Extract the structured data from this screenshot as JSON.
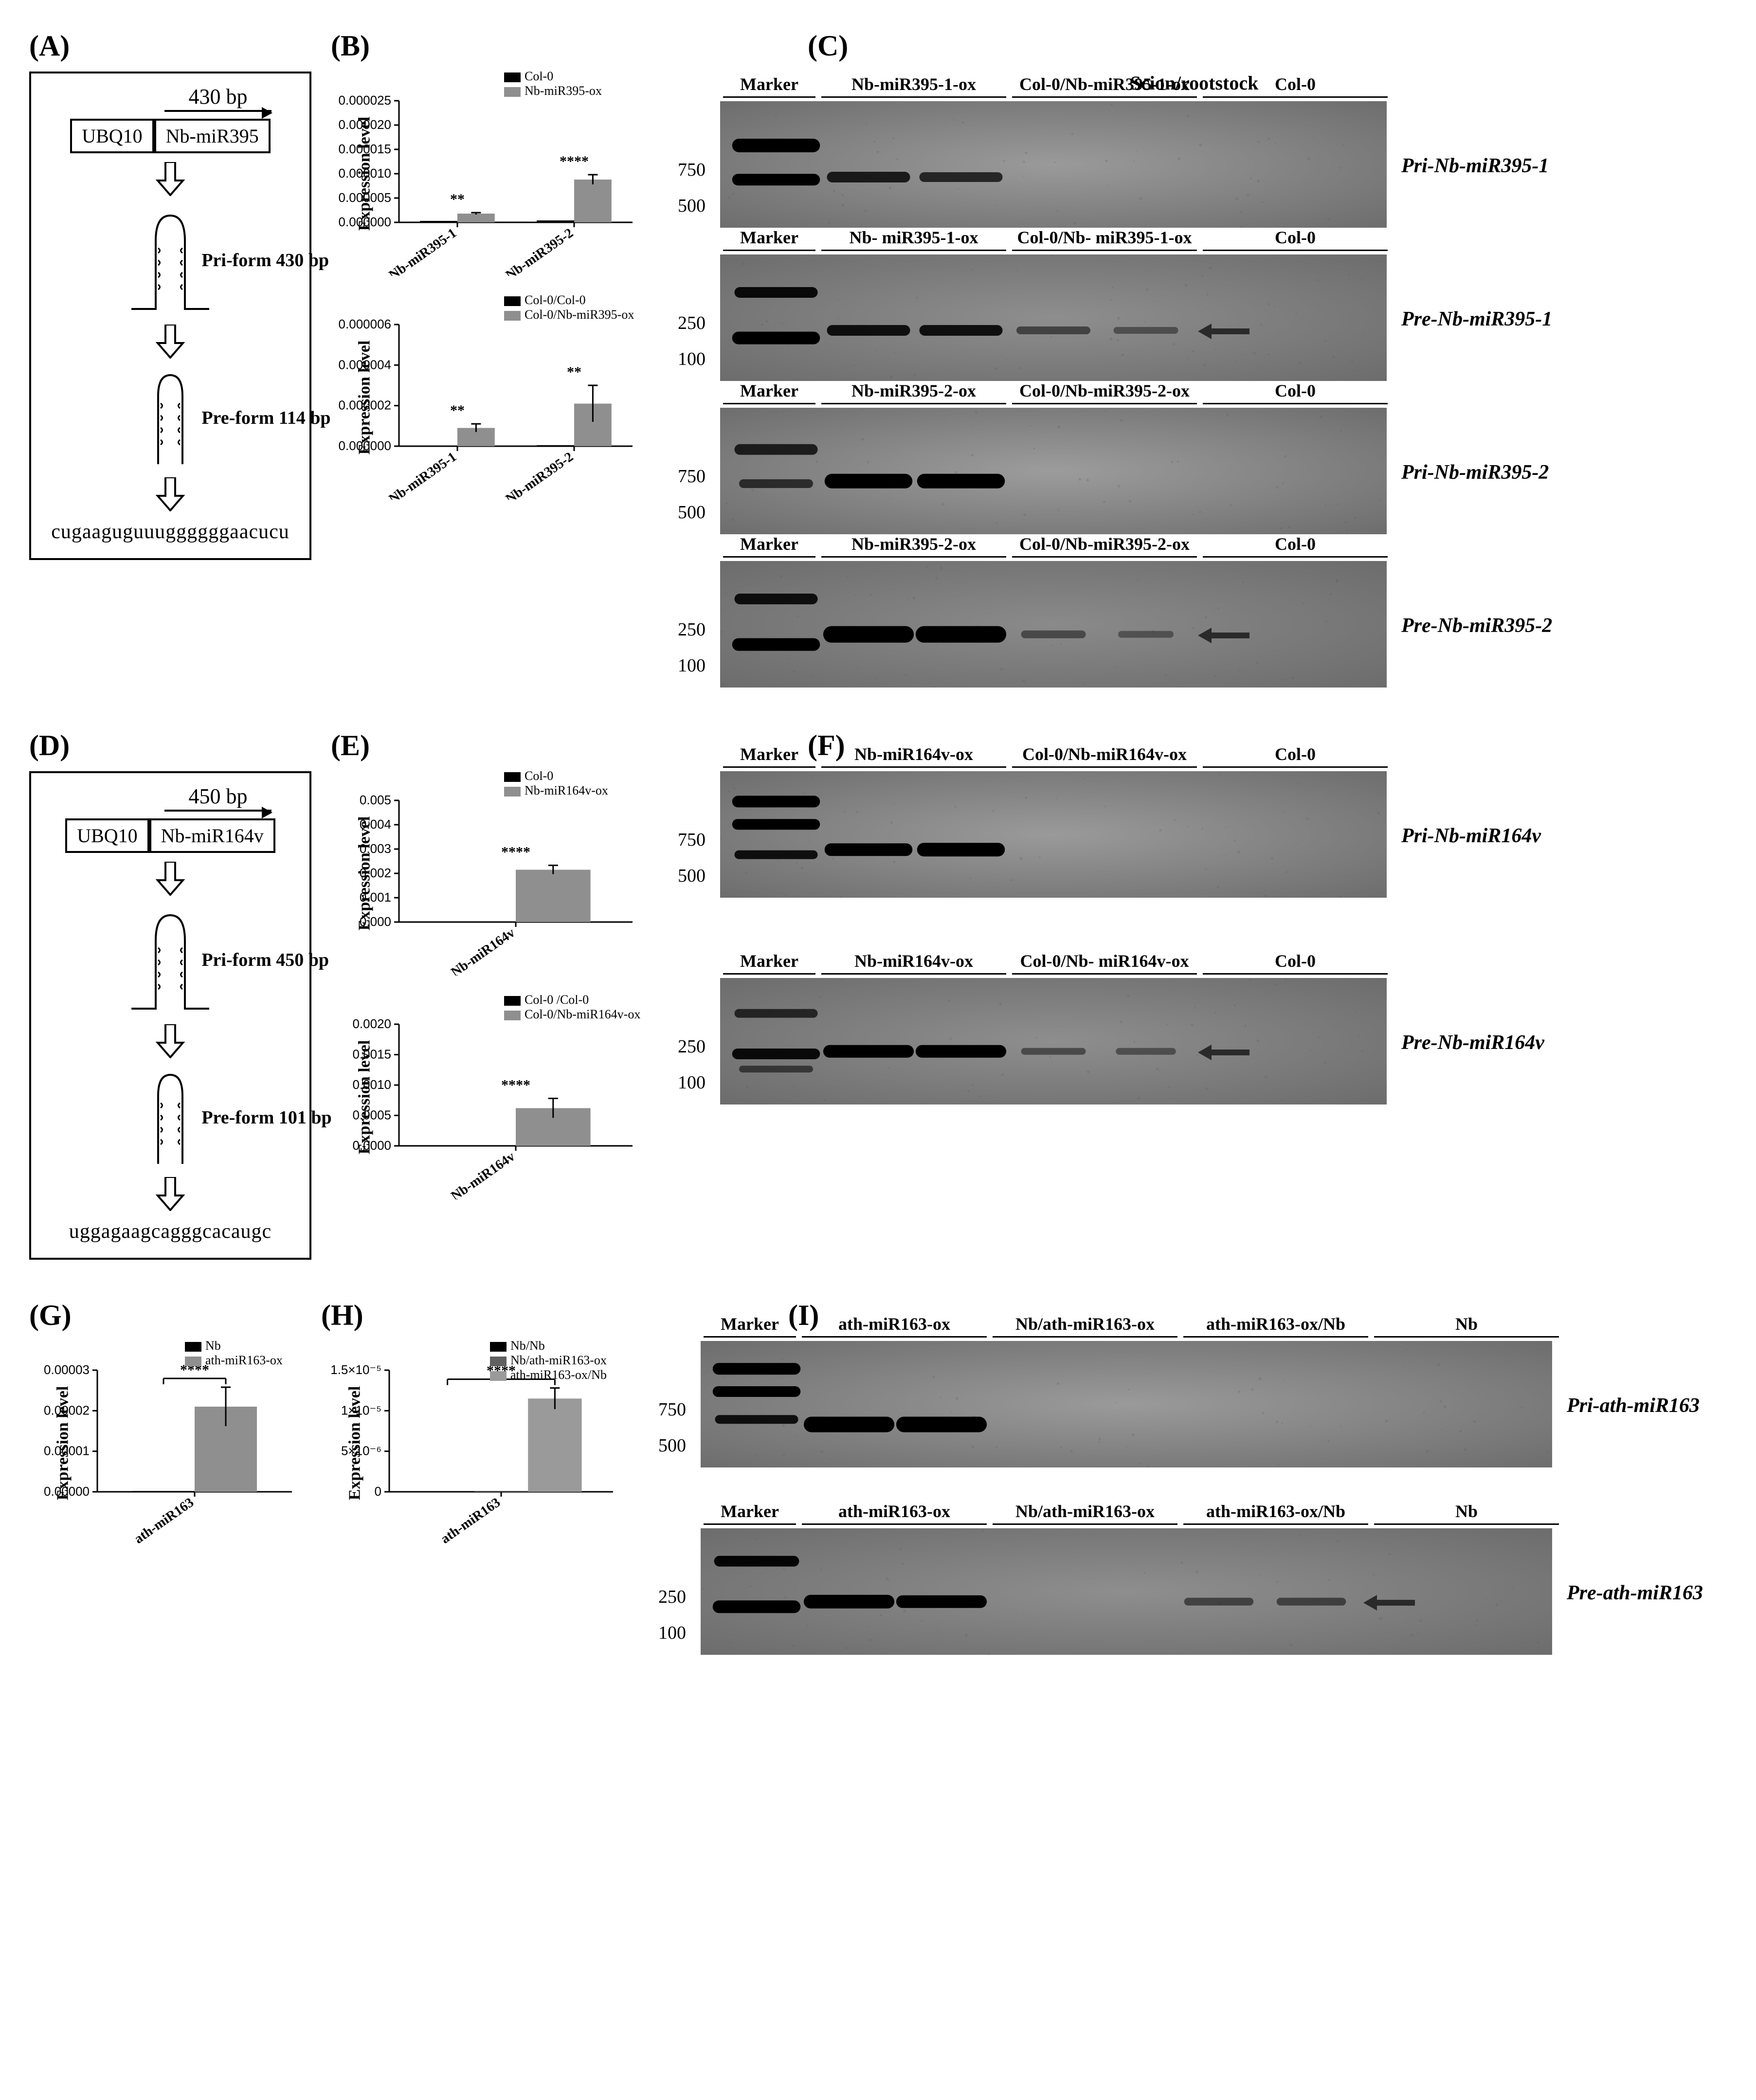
{
  "panels": {
    "A": "(A)",
    "B": "(B)",
    "C": "(C)",
    "D": "(D)",
    "E": "(E)",
    "F": "(F)",
    "G": "(G)",
    "H": "(H)",
    "I": "(I)"
  },
  "scion_rootstock_header": "Scion/rootstock",
  "schematic_A": {
    "bp_label": "430 bp",
    "blocks": [
      "UBQ10",
      "Nb-miR395"
    ],
    "pri_label": "Pri-form 430 bp",
    "pre_label": "Pre-form 114 bp",
    "sequence": "cugaaguguuuggggggaacucu"
  },
  "schematic_D": {
    "bp_label": "450 bp",
    "blocks": [
      "UBQ10",
      "Nb-miR164v"
    ],
    "pri_label": "Pri-form 450 bp",
    "pre_label": "Pre-form 101 bp",
    "sequence": "uggagaagcagggcacaugc"
  },
  "chart_B_top": {
    "type": "bar",
    "ylabel": "Expression level",
    "legend": [
      {
        "label": "Col-0",
        "color": "#000000"
      },
      {
        "label": "Nb-miR395-ox",
        "color": "#8f8f8f"
      }
    ],
    "categories": [
      "Nb-miR395-1",
      "Nb-miR395-2"
    ],
    "series": [
      {
        "color": "#000000",
        "values": [
          3e-07,
          4e-07
        ]
      },
      {
        "color": "#8f8f8f",
        "values": [
          1.8e-06,
          8.8e-06
        ],
        "err": [
          2e-07,
          1e-06
        ]
      }
    ],
    "ylim": [
      0,
      2.5e-05
    ],
    "yticks": [
      0.0,
      5e-06,
      1e-05,
      1.5e-05,
      2e-05,
      2.5e-05
    ],
    "ytick_labels": [
      "0.000000",
      "0.000005",
      "0.000010",
      "0.000015",
      "0.000020",
      "0.000025"
    ],
    "signif": [
      {
        "group": 0,
        "label": "**"
      },
      {
        "group": 1,
        "label": "****"
      }
    ],
    "bar_width": 0.32,
    "tick_fontsize": 26,
    "label_fontsize": 34
  },
  "chart_B_bottom": {
    "type": "bar",
    "ylabel": "Expression level",
    "legend": [
      {
        "label": "Col-0/Col-0",
        "color": "#000000"
      },
      {
        "label": "Col-0/Nb-miR395-ox",
        "color": "#8f8f8f"
      }
    ],
    "categories": [
      "Nb-miR395-1",
      "Nb-miR395-2"
    ],
    "series": [
      {
        "color": "#000000",
        "values": [
          3e-08,
          5e-08
        ]
      },
      {
        "color": "#8f8f8f",
        "values": [
          9e-07,
          2.1e-06
        ],
        "err": [
          2e-07,
          9e-07
        ]
      }
    ],
    "ylim": [
      0,
      6e-06
    ],
    "yticks": [
      0.0,
      2e-06,
      4e-06,
      6e-06
    ],
    "ytick_labels": [
      "0.000000",
      "0.000002",
      "0.000004",
      "0.000006"
    ],
    "signif": [
      {
        "group": 0,
        "label": "**"
      },
      {
        "group": 1,
        "label": "**"
      }
    ],
    "bar_width": 0.32
  },
  "chart_E_top": {
    "type": "bar",
    "ylabel": "Expression level",
    "legend": [
      {
        "label": "Col-0",
        "color": "#000000"
      },
      {
        "label": "Nb-miR164v-ox",
        "color": "#8f8f8f"
      }
    ],
    "categories": [
      "Nb-miR164v"
    ],
    "series": [
      {
        "color": "#000000",
        "values": [
          3e-05
        ]
      },
      {
        "color": "#8f8f8f",
        "values": [
          0.00215
        ],
        "err": [
          0.00018
        ]
      }
    ],
    "ylim": [
      0,
      0.005
    ],
    "yticks": [
      0.0,
      0.001,
      0.002,
      0.003,
      0.004,
      0.005
    ],
    "ytick_labels": [
      "0.000",
      "0.001",
      "0.002",
      "0.003",
      "0.004",
      "0.005"
    ],
    "signif": [
      {
        "group": 0,
        "label": "****"
      }
    ],
    "bar_width": 0.32
  },
  "chart_E_bottom": {
    "type": "bar",
    "ylabel": "Expression level",
    "legend": [
      {
        "label": "Col-0 /Col-0",
        "color": "#000000"
      },
      {
        "label": "Col-0/Nb-miR164v-ox",
        "color": "#8f8f8f"
      }
    ],
    "categories": [
      "Nb-miR164v"
    ],
    "series": [
      {
        "color": "#000000",
        "values": [
          5e-06
        ]
      },
      {
        "color": "#8f8f8f",
        "values": [
          0.00062
        ],
        "err": [
          0.00016
        ]
      }
    ],
    "ylim": [
      0,
      0.002
    ],
    "yticks": [
      0.0,
      0.0005,
      0.001,
      0.0015,
      0.002
    ],
    "ytick_labels": [
      "0.0000",
      "0.0005",
      "0.0010",
      "0.0015",
      "0.0020"
    ],
    "signif": [
      {
        "group": 0,
        "label": "****"
      }
    ],
    "bar_width": 0.32
  },
  "chart_G": {
    "type": "bar",
    "ylabel": "Expression level",
    "legend": [
      {
        "label": "Nb",
        "color": "#000000"
      },
      {
        "label": "ath-miR163-ox",
        "color": "#8f8f8f"
      }
    ],
    "categories": [
      "ath-miR163"
    ],
    "series": [
      {
        "color": "#000000",
        "values": [
          2e-07
        ]
      },
      {
        "color": "#8f8f8f",
        "values": [
          2.1e-05
        ],
        "err": [
          4.8e-06
        ]
      }
    ],
    "ylim": [
      0,
      3e-05
    ],
    "yticks": [
      0.0,
      1e-05,
      2e-05,
      3e-05
    ],
    "ytick_labels": [
      "0.00000",
      "0.00001",
      "0.00002",
      "0.00003"
    ],
    "signif": [
      {
        "group": 0,
        "label": "****",
        "bracket": true
      }
    ],
    "bar_width": 0.32
  },
  "chart_H": {
    "type": "bar",
    "ylabel": "Expression level",
    "legend": [
      {
        "label": "Nb/Nb",
        "color": "#000000"
      },
      {
        "label": "Nb/ath-miR163-ox",
        "color": "#606060"
      },
      {
        "label": "ath-miR163-ox/Nb",
        "color": "#9a9a9a"
      }
    ],
    "categories": [
      "ath-miR163"
    ],
    "series": [
      {
        "color": "#000000",
        "values": [
          3e-08
        ]
      },
      {
        "color": "#606060",
        "values": [
          5e-08
        ]
      },
      {
        "color": "#9a9a9a",
        "values": [
          1.15e-05
        ],
        "err": [
          1.3e-06
        ]
      }
    ],
    "ylim": [
      0,
      1.5e-05
    ],
    "yticks": [
      0,
      5e-06,
      1e-05,
      1.5e-05
    ],
    "ytick_labels": [
      "0",
      "5×10⁻⁶",
      "1×10⁻⁵",
      "1.5×10⁻⁵"
    ],
    "signif": [
      {
        "group": 0,
        "label": "****",
        "bracket": true
      }
    ],
    "bar_width": 0.24
  },
  "gels_C": [
    {
      "right_label": "Pri-Nb-miR395-1",
      "bg": "#9a9a9a",
      "size_labels": [
        "750",
        "500"
      ],
      "lane_groups": [
        {
          "label": "Marker",
          "lanes": 1
        },
        {
          "label": "Nb-miR395-1-ox",
          "lanes": 2
        },
        {
          "label": "Col-0/Nb-miR395-1-ox",
          "lanes": 2
        },
        {
          "label": "Col-0",
          "lanes": 2
        }
      ],
      "bands": [
        {
          "lane": 0,
          "y": 0.35,
          "w": 0.95,
          "intensity": 1.0,
          "thick": 28
        },
        {
          "lane": 0,
          "y": 0.62,
          "w": 0.95,
          "intensity": 1.0,
          "thick": 24
        },
        {
          "lane": 1,
          "y": 0.6,
          "w": 0.9,
          "intensity": 0.75,
          "thick": 22
        },
        {
          "lane": 2,
          "y": 0.6,
          "w": 0.9,
          "intensity": 0.65,
          "thick": 20
        }
      ],
      "arrow": null
    },
    {
      "right_label": "Pre-Nb-miR395-1",
      "bg": "#8e8e8e",
      "size_labels": [
        "250",
        "100"
      ],
      "lane_groups": [
        {
          "label": "Marker",
          "lanes": 1
        },
        {
          "label": "Nb- miR395-1-ox",
          "lanes": 2
        },
        {
          "label": "Col-0/Nb- miR395-1-ox",
          "lanes": 2
        },
        {
          "label": "Col-0",
          "lanes": 2
        }
      ],
      "bands": [
        {
          "lane": 0,
          "y": 0.3,
          "w": 0.9,
          "intensity": 0.9,
          "thick": 22
        },
        {
          "lane": 0,
          "y": 0.66,
          "w": 0.95,
          "intensity": 1.0,
          "thick": 26
        },
        {
          "lane": 1,
          "y": 0.6,
          "w": 0.9,
          "intensity": 0.85,
          "thick": 22
        },
        {
          "lane": 2,
          "y": 0.6,
          "w": 0.9,
          "intensity": 0.85,
          "thick": 22
        },
        {
          "lane": 3,
          "y": 0.6,
          "w": 0.8,
          "intensity": 0.35,
          "thick": 16
        },
        {
          "lane": 4,
          "y": 0.6,
          "w": 0.7,
          "intensity": 0.22,
          "thick": 14
        }
      ],
      "arrow": {
        "y": 0.6,
        "after_lane": 4
      }
    },
    {
      "right_label": "Pri-Nb-miR395-2",
      "bg": "#9c9c9c",
      "size_labels": [
        "750",
        "500"
      ],
      "lane_groups": [
        {
          "label": "Marker",
          "lanes": 1
        },
        {
          "label": "Nb-miR395-2-ox",
          "lanes": 2
        },
        {
          "label": "Col-0/Nb-miR395-2-ox",
          "lanes": 2
        },
        {
          "label": "Col-0",
          "lanes": 2
        }
      ],
      "bands": [
        {
          "lane": 0,
          "y": 0.33,
          "w": 0.9,
          "intensity": 0.7,
          "thick": 22
        },
        {
          "lane": 0,
          "y": 0.6,
          "w": 0.8,
          "intensity": 0.55,
          "thick": 18
        },
        {
          "lane": 1,
          "y": 0.58,
          "w": 0.95,
          "intensity": 1.0,
          "thick": 30
        },
        {
          "lane": 2,
          "y": 0.58,
          "w": 0.95,
          "intensity": 1.0,
          "thick": 30
        }
      ],
      "arrow": null
    },
    {
      "right_label": "Pre-Nb-miR395-2",
      "bg": "#8a8a8a",
      "size_labels": [
        "250",
        "100"
      ],
      "lane_groups": [
        {
          "label": "Marker",
          "lanes": 1
        },
        {
          "label": "Nb-miR395-2-ox",
          "lanes": 2
        },
        {
          "label": "Col-0/Nb-miR395-2-ox",
          "lanes": 2
        },
        {
          "label": "Col-0",
          "lanes": 2
        }
      ],
      "bands": [
        {
          "lane": 0,
          "y": 0.3,
          "w": 0.9,
          "intensity": 0.85,
          "thick": 22
        },
        {
          "lane": 0,
          "y": 0.66,
          "w": 0.95,
          "intensity": 1.0,
          "thick": 26
        },
        {
          "lane": 1,
          "y": 0.58,
          "w": 0.98,
          "intensity": 1.0,
          "thick": 34
        },
        {
          "lane": 2,
          "y": 0.58,
          "w": 0.98,
          "intensity": 1.0,
          "thick": 34
        },
        {
          "lane": 3,
          "y": 0.58,
          "w": 0.7,
          "intensity": 0.28,
          "thick": 16
        },
        {
          "lane": 4,
          "y": 0.58,
          "w": 0.6,
          "intensity": 0.18,
          "thick": 14
        }
      ],
      "arrow": {
        "y": 0.58,
        "after_lane": 4
      }
    }
  ],
  "gels_F": [
    {
      "right_label": "Pri-Nb-miR164v",
      "bg": "#a0a0a0",
      "size_labels": [
        "750",
        "500"
      ],
      "lane_groups": [
        {
          "label": "Marker",
          "lanes": 1
        },
        {
          "label": "Nb-miR164v-ox",
          "lanes": 2
        },
        {
          "label": "Col-0/Nb-miR164v-ox",
          "lanes": 2
        },
        {
          "label": "Col-0",
          "lanes": 2
        }
      ],
      "bands": [
        {
          "lane": 0,
          "y": 0.24,
          "w": 0.95,
          "intensity": 1.0,
          "thick": 24
        },
        {
          "lane": 0,
          "y": 0.42,
          "w": 0.95,
          "intensity": 1.0,
          "thick": 22
        },
        {
          "lane": 0,
          "y": 0.66,
          "w": 0.9,
          "intensity": 0.85,
          "thick": 18
        },
        {
          "lane": 1,
          "y": 0.62,
          "w": 0.95,
          "intensity": 1.0,
          "thick": 26
        },
        {
          "lane": 2,
          "y": 0.62,
          "w": 0.95,
          "intensity": 1.0,
          "thick": 28
        }
      ],
      "arrow": null
    },
    {
      "right_label": "Pre-Nb-miR164v",
      "bg": "#8f8f8f",
      "size_labels": [
        "250",
        "100"
      ],
      "lane_groups": [
        {
          "label": "Marker",
          "lanes": 1
        },
        {
          "label": "Nb-miR164v-ox",
          "lanes": 2
        },
        {
          "label": "Col-0/Nb- miR164v-ox",
          "lanes": 2
        },
        {
          "label": "Col-0",
          "lanes": 2
        }
      ],
      "bands": [
        {
          "lane": 0,
          "y": 0.28,
          "w": 0.9,
          "intensity": 0.6,
          "thick": 18
        },
        {
          "lane": 0,
          "y": 0.6,
          "w": 0.95,
          "intensity": 0.9,
          "thick": 22
        },
        {
          "lane": 0,
          "y": 0.72,
          "w": 0.8,
          "intensity": 0.4,
          "thick": 14
        },
        {
          "lane": 1,
          "y": 0.58,
          "w": 0.98,
          "intensity": 1.0,
          "thick": 26
        },
        {
          "lane": 2,
          "y": 0.58,
          "w": 0.98,
          "intensity": 1.0,
          "thick": 26
        },
        {
          "lane": 3,
          "y": 0.58,
          "w": 0.7,
          "intensity": 0.28,
          "thick": 14
        },
        {
          "lane": 4,
          "y": 0.58,
          "w": 0.65,
          "intensity": 0.22,
          "thick": 14
        }
      ],
      "arrow": {
        "y": 0.58,
        "after_lane": 4
      }
    }
  ],
  "gels_I": [
    {
      "right_label": "Pri-ath-miR163",
      "bg": "#a4a4a4",
      "size_labels": [
        "750",
        "500"
      ],
      "lane_groups": [
        {
          "label": "Marker",
          "lanes": 1
        },
        {
          "label": "ath-miR163-ox",
          "lanes": 2
        },
        {
          "label": "Nb/ath-miR163-ox",
          "lanes": 2
        },
        {
          "label": "ath-miR163-ox/Nb",
          "lanes": 2
        },
        {
          "label": "Nb",
          "lanes": 2
        }
      ],
      "bands": [
        {
          "lane": 0,
          "y": 0.22,
          "w": 0.95,
          "intensity": 1.0,
          "thick": 24
        },
        {
          "lane": 0,
          "y": 0.4,
          "w": 0.95,
          "intensity": 1.0,
          "thick": 22
        },
        {
          "lane": 0,
          "y": 0.62,
          "w": 0.9,
          "intensity": 0.85,
          "thick": 18
        },
        {
          "lane": 1,
          "y": 0.66,
          "w": 0.98,
          "intensity": 1.0,
          "thick": 32
        },
        {
          "lane": 2,
          "y": 0.66,
          "w": 0.98,
          "intensity": 1.0,
          "thick": 32
        }
      ],
      "arrow": null
    },
    {
      "right_label": "Pre-ath-miR163",
      "bg": "#8e8e8e",
      "size_labels": [
        "250",
        "100"
      ],
      "lane_groups": [
        {
          "label": "Marker",
          "lanes": 1
        },
        {
          "label": "ath-miR163-ox",
          "lanes": 2
        },
        {
          "label": "Nb/ath-miR163-ox",
          "lanes": 2
        },
        {
          "label": "ath-miR163-ox/Nb",
          "lanes": 2
        },
        {
          "label": "Nb",
          "lanes": 2
        }
      ],
      "bands": [
        {
          "lane": 0,
          "y": 0.26,
          "w": 0.92,
          "intensity": 0.95,
          "thick": 22
        },
        {
          "lane": 0,
          "y": 0.62,
          "w": 0.95,
          "intensity": 1.0,
          "thick": 26
        },
        {
          "lane": 1,
          "y": 0.58,
          "w": 0.98,
          "intensity": 1.0,
          "thick": 28
        },
        {
          "lane": 2,
          "y": 0.58,
          "w": 0.98,
          "intensity": 1.0,
          "thick": 26
        },
        {
          "lane": 5,
          "y": 0.58,
          "w": 0.75,
          "intensity": 0.35,
          "thick": 16
        },
        {
          "lane": 6,
          "y": 0.58,
          "w": 0.75,
          "intensity": 0.35,
          "thick": 16
        }
      ],
      "arrow": {
        "y": 0.58,
        "after_lane": 6
      }
    }
  ],
  "gel_style": {
    "lane_width": 190,
    "lane_gap": 0,
    "gel_height": 260,
    "band_color": "#000000",
    "noise_color": "#747474",
    "marker_lane_width": 200
  }
}
